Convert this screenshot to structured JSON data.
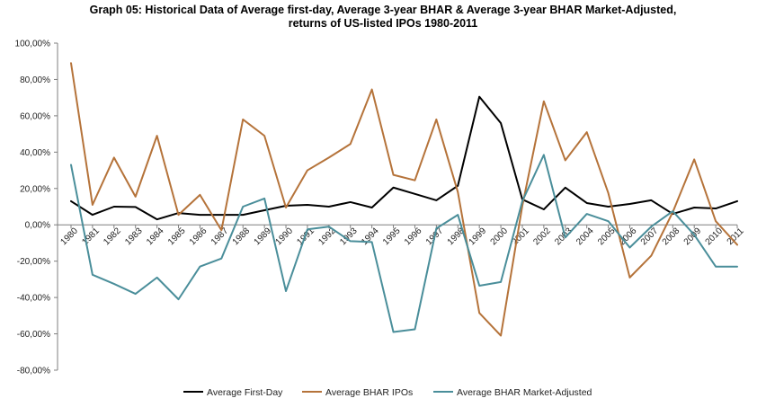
{
  "colors": {
    "first_day": "#000000",
    "bhar_ipos": "#B5733A",
    "bhar_market_adjusted": "#4A8E9A",
    "axis": "#7f7f7f"
  },
  "chart_data": {
    "type": "line",
    "title": "Graph 05: Historical Data of Average first-day, Average 3-year BHAR & Average 3-year BHAR Market-Adjusted,",
    "subtitle": "returns of US-listed IPOs 1980-2011",
    "xlabel": "",
    "ylabel": "",
    "ylim": [
      -80,
      100
    ],
    "yticks": [
      100,
      80,
      60,
      40,
      20,
      0,
      -20,
      -40,
      -60,
      -80
    ],
    "ytick_labels": [
      "100,00%",
      "80,00%",
      "60,00%",
      "40,00%",
      "20,00%",
      "0,00%",
      "-20,00%",
      "-40,00%",
      "-60,00%",
      "-80,00%"
    ],
    "grid": false,
    "legend_position": "bottom",
    "x": [
      "1980",
      "1981",
      "1982",
      "1983",
      "1984",
      "1985",
      "1986",
      "1987",
      "1988",
      "1989",
      "1990",
      "1991",
      "1992",
      "1993",
      "1994",
      "1995",
      "1996",
      "1997",
      "1998",
      "1999",
      "2000",
      "2001",
      "2002",
      "2003",
      "2004",
      "2005",
      "2006",
      "2007",
      "2008",
      "2009",
      "2010",
      "2011"
    ],
    "series": [
      {
        "name": "Average First-Day",
        "color_key": "first_day",
        "values": [
          13,
          5.5,
          10,
          9.8,
          3,
          6.5,
          5.5,
          5.5,
          5.5,
          8,
          10.5,
          11,
          10,
          12.5,
          9.5,
          20.5,
          17,
          13.5,
          21.5,
          70.5,
          56,
          14,
          8.5,
          20.5,
          12,
          10,
          11.5,
          13.5,
          6,
          9.5,
          9,
          13
        ]
      },
      {
        "name": "Average BHAR IPOs",
        "color_key": "bhar_ipos",
        "values": [
          89,
          11,
          37,
          15.5,
          49,
          5.5,
          16.5,
          -3,
          58,
          49,
          9.5,
          30,
          37,
          44.5,
          74.5,
          27.5,
          24.5,
          58,
          18,
          -48.5,
          -61,
          10.5,
          68,
          35.5,
          51,
          17.5,
          -29,
          -17,
          7,
          36,
          2,
          -11
        ]
      },
      {
        "name": "Average BHAR Market-Adjusted",
        "color_key": "bhar_market_adjusted",
        "values": [
          33,
          -27.5,
          -32.5,
          -38,
          -29,
          -41,
          -23,
          -18.5,
          10,
          14.5,
          -36.5,
          -2.5,
          -1,
          -9,
          -9.5,
          -59,
          -57.5,
          -2,
          5.5,
          -33.5,
          -31.5,
          13,
          38.5,
          -7,
          6,
          2,
          -12.5,
          -1,
          7.5,
          -5.5,
          -23,
          -23
        ]
      }
    ]
  }
}
